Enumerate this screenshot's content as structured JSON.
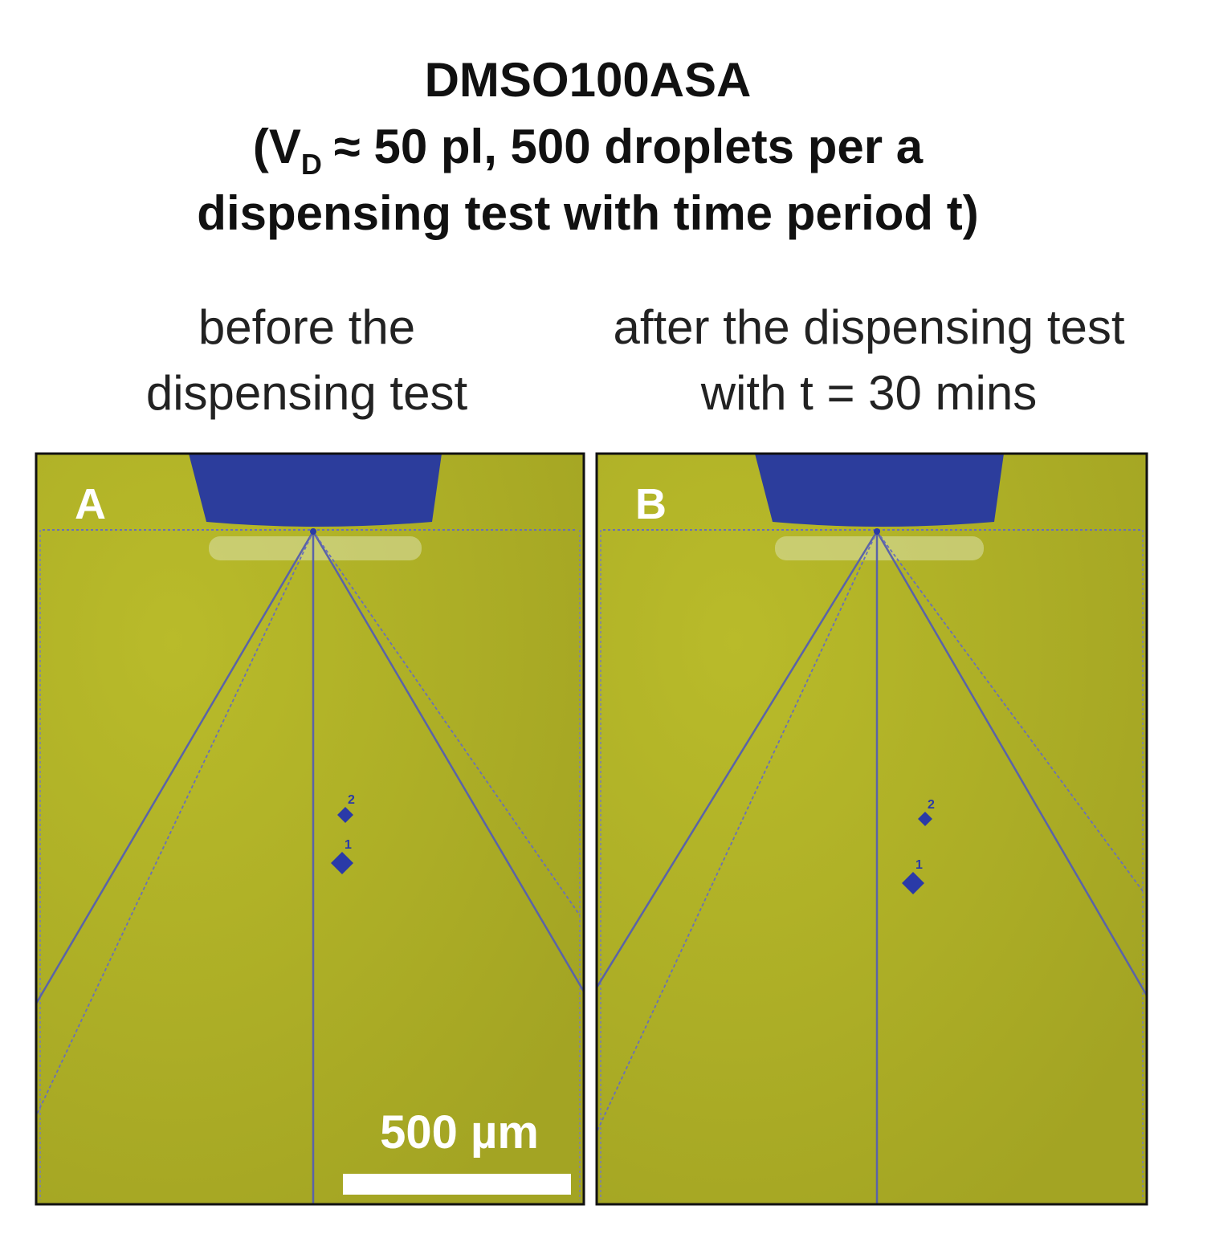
{
  "title": {
    "line1": "DMSO100ASA",
    "line2_prefix": "(V",
    "line2_subscript": "D",
    "line2_rest": "≈ 50 pl, 500 droplets per a",
    "line3": "dispensing test with time period t)"
  },
  "panels": [
    {
      "caption": [
        "before the",
        "dispensing test"
      ],
      "label": "A",
      "markers": [
        "2",
        "1"
      ]
    },
    {
      "caption": [
        "after the dispensing test",
        "with t = 30 mins"
      ],
      "label": "B",
      "markers": [
        "2",
        "1"
      ]
    }
  ],
  "scale_bar": "500 µm"
}
